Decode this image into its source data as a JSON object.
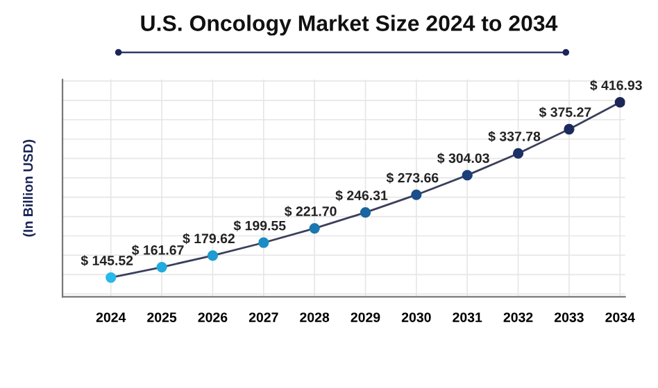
{
  "chart_data": {
    "type": "line",
    "title": "U.S. Oncology Market Size 2024 to 2034",
    "ylabel": "(In Billion USD)",
    "categories": [
      "2024",
      "2025",
      "2026",
      "2027",
      "2028",
      "2029",
      "2030",
      "2031",
      "2032",
      "2033",
      "2034"
    ],
    "series": [
      {
        "color": "#3a3f5c",
        "values": [
          145.52,
          161.67,
          179.62,
          199.55,
          221.7,
          246.31,
          273.66,
          304.03,
          337.78,
          375.27,
          416.93
        ],
        "colors": [
          "#29b8ea",
          "#23aade",
          "#1f9bd1",
          "#1c8cc4",
          "#1a78b0",
          "#1a65a0",
          "#1a4f8a",
          "#1b3f78",
          "#1c2f66",
          "#1c2a5e",
          "#1c2658"
        ],
        "value_labels": [
          "$ 145.52",
          "$ 161.67",
          "$ 179.62",
          "$ 199.55",
          "$ 221.70",
          "$ 246.31",
          "$ 273.66",
          "$ 304.03",
          "$ 337.78",
          "$ 375.27",
          "$ 416.93"
        ]
      }
    ],
    "marker": "circle",
    "line_style": "solid",
    "grid": true
  }
}
